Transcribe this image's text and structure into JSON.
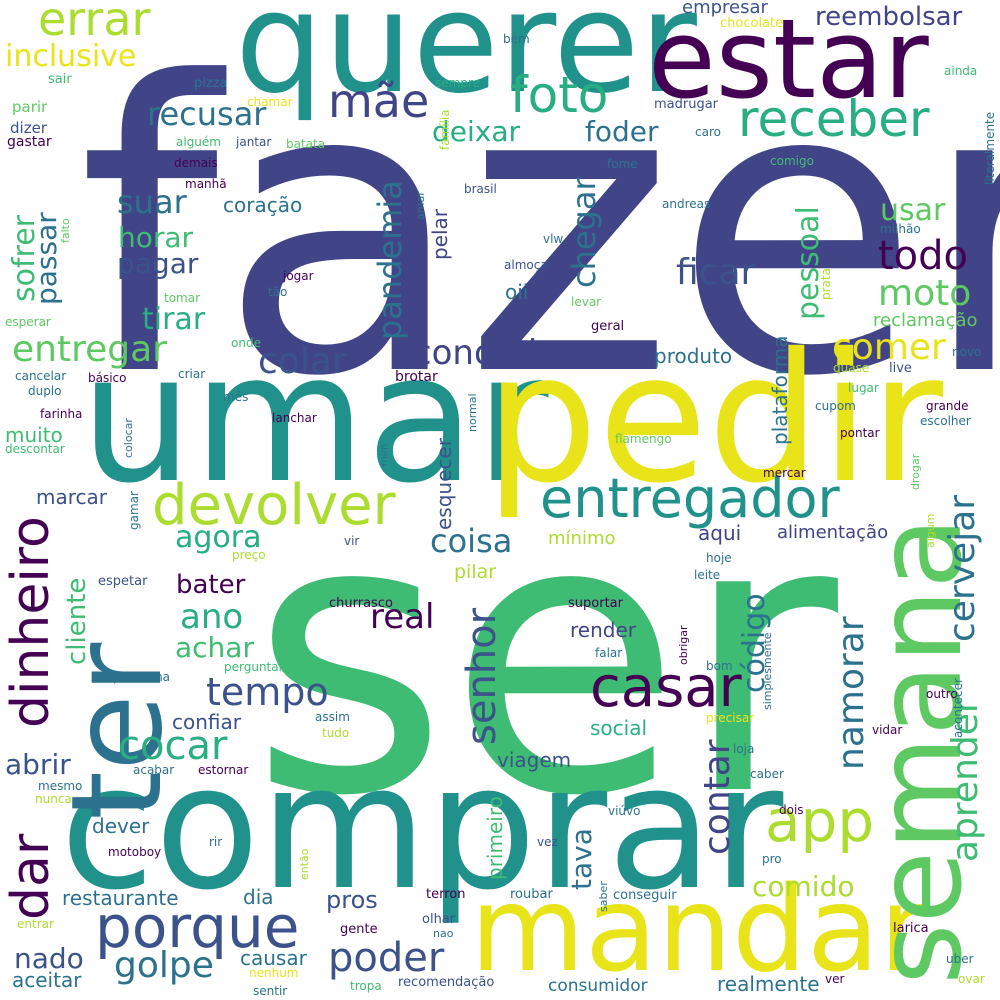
{
  "palette": {
    "purple_dark": "#440154",
    "indigo": "#3b528b",
    "navy": "#414487",
    "blue_teal": "#2c728e",
    "teal": "#21918c",
    "green_teal": "#28ae80",
    "green": "#3fbc73",
    "light_green": "#5ec962",
    "lime": "#addc30",
    "yellow": "#fde725",
    "bright_yellow": "#e8e419"
  },
  "words": [
    {
      "text": "fazer",
      "weight": 100,
      "color": "#414487"
    },
    {
      "text": "ser",
      "weight": 96,
      "color": "#3fbc73"
    },
    {
      "text": "comprar",
      "weight": 60,
      "color": "#21918c"
    },
    {
      "text": "umar",
      "weight": 58,
      "color": "#21918c"
    },
    {
      "text": "pedir",
      "weight": 58,
      "color": "#e8e419"
    },
    {
      "text": "querer",
      "weight": 48,
      "color": "#21918c"
    },
    {
      "text": "mandar",
      "weight": 42,
      "color": "#e8e419"
    },
    {
      "text": "semana",
      "weight": 42,
      "color": "#5ec962"
    },
    {
      "text": "ter",
      "weight": 40,
      "color": "#2c728e"
    },
    {
      "text": "estar",
      "weight": 36,
      "color": "#440154"
    },
    {
      "text": "casar",
      "weight": 24,
      "color": "#440154"
    },
    {
      "text": "porque",
      "weight": 24,
      "color": "#3b528b"
    },
    {
      "text": "app",
      "weight": 24,
      "color": "#addc30"
    },
    {
      "text": "entregador",
      "weight": 22,
      "color": "#21918c"
    },
    {
      "text": "devolver",
      "weight": 22,
      "color": "#addc30"
    },
    {
      "text": "dinheiro",
      "weight": 22,
      "color": "#440154"
    },
    {
      "text": "dar",
      "weight": 22,
      "color": "#440154"
    },
    {
      "text": "errar",
      "weight": 20,
      "color": "#addc30"
    },
    {
      "text": "foto",
      "weight": 20,
      "color": "#28ae80"
    },
    {
      "text": "receber",
      "weight": 20,
      "color": "#28ae80"
    },
    {
      "text": "mãe",
      "weight": 18,
      "color": "#414487"
    },
    {
      "text": "cocar",
      "weight": 16,
      "color": "#28ae80"
    },
    {
      "text": "tempo",
      "weight": 16,
      "color": "#3b528b"
    },
    {
      "text": "golpe",
      "weight": 16,
      "color": "#2c728e"
    },
    {
      "text": "poder",
      "weight": 16,
      "color": "#3b528b"
    },
    {
      "text": "senhor",
      "weight": 16,
      "color": "#3b528b"
    },
    {
      "text": "cervejar",
      "weight": 16,
      "color": "#2c728e"
    },
    {
      "text": "contar",
      "weight": 16,
      "color": "#414487"
    },
    {
      "text": "namorar",
      "weight": 16,
      "color": "#2c728e"
    },
    {
      "text": "aprender",
      "weight": 16,
      "color": "#3fbc73"
    },
    {
      "text": "economizar",
      "weight": 14,
      "color": "#414487"
    },
    {
      "text": "entregar",
      "weight": 14,
      "color": "#5ec962"
    },
    {
      "text": "comer",
      "weight": 14,
      "color": "#e8e419"
    },
    {
      "text": "colar",
      "weight": 14,
      "color": "#3b528b"
    },
    {
      "text": "moto",
      "weight": 14,
      "color": "#5ec962"
    },
    {
      "text": "todo",
      "weight": 14,
      "color": "#440154"
    },
    {
      "text": "ficar",
      "weight": 14,
      "color": "#3b528b"
    },
    {
      "text": "recusar",
      "weight": 14,
      "color": "#2c728e"
    },
    {
      "text": "suar",
      "weight": 14,
      "color": "#2c728e"
    },
    {
      "text": "pandemia",
      "weight": 14,
      "color": "#2c728e"
    },
    {
      "text": "chegar",
      "weight": 14,
      "color": "#2c728e"
    },
    {
      "text": "real",
      "weight": 14,
      "color": "#440154"
    },
    {
      "text": "ano",
      "weight": 14,
      "color": "#28ae80"
    },
    {
      "text": "agora",
      "weight": 14,
      "color": "#28ae80"
    },
    {
      "text": "coisa",
      "weight": 14,
      "color": "#2c728e"
    },
    {
      "text": "código",
      "weight": 14,
      "color": "#2c728e"
    },
    {
      "text": "comido",
      "weight": 12,
      "color": "#addc30"
    },
    {
      "text": "tava",
      "weight": 12,
      "color": "#2c728e"
    },
    {
      "text": "inclusive",
      "weight": 12,
      "color": "#e8e419"
    },
    {
      "text": "deixar",
      "weight": 12,
      "color": "#28ae80"
    },
    {
      "text": "foder",
      "weight": 12,
      "color": "#2c728e"
    },
    {
      "text": "usar",
      "weight": 12,
      "color": "#5ec962"
    },
    {
      "text": "horar",
      "weight": 12,
      "color": "#3fbc73"
    },
    {
      "text": "pagar",
      "weight": 12,
      "color": "#3b528b"
    },
    {
      "text": "tirar",
      "weight": 12,
      "color": "#28ae80"
    },
    {
      "text": "pessoal",
      "weight": 12,
      "color": "#3fbc73"
    },
    {
      "text": "sofrer",
      "weight": 12,
      "color": "#3fbc73"
    },
    {
      "text": "passar",
      "weight": 12,
      "color": "#2c728e"
    },
    {
      "text": "cliente",
      "weight": 12,
      "color": "#3fbc73"
    },
    {
      "text": "achar",
      "weight": 12,
      "color": "#3fbc73"
    },
    {
      "text": "abrir",
      "weight": 12,
      "color": "#3b528b"
    },
    {
      "text": "nado",
      "weight": 12,
      "color": "#3b528b"
    },
    {
      "text": "pros",
      "weight": 12,
      "color": "#3b528b"
    },
    {
      "text": "bater",
      "weight": 12,
      "color": "#440154"
    },
    {
      "text": "reembolsar",
      "weight": 10,
      "color": "#414487"
    },
    {
      "text": "empresar",
      "weight": 9,
      "color": "#3b528b"
    },
    {
      "text": "coração",
      "weight": 9,
      "color": "#2c728e"
    },
    {
      "text": "esquecer",
      "weight": 9,
      "color": "#3b528b"
    },
    {
      "text": "pelar",
      "weight": 9,
      "color": "#414487"
    },
    {
      "text": "oii",
      "weight": 9,
      "color": "#2c728e"
    },
    {
      "text": "produto",
      "weight": 9,
      "color": "#2c728e"
    },
    {
      "text": "plataforma",
      "weight": 9,
      "color": "#2c728e"
    },
    {
      "text": "reclamação",
      "weight": 9,
      "color": "#5ec962"
    },
    {
      "text": "aqui",
      "weight": 9,
      "color": "#414487"
    },
    {
      "text": "alimentação",
      "weight": 9,
      "color": "#414487"
    },
    {
      "text": "viagem",
      "weight": 9,
      "color": "#3b528b"
    },
    {
      "text": "render",
      "weight": 9,
      "color": "#414487"
    },
    {
      "text": "social",
      "weight": 9,
      "color": "#28ae80"
    },
    {
      "text": "confiar",
      "weight": 9,
      "color": "#3b528b"
    },
    {
      "text": "marcar",
      "weight": 9,
      "color": "#3b528b"
    },
    {
      "text": "muito",
      "weight": 9,
      "color": "#3fbc73"
    },
    {
      "text": "dever",
      "weight": 9,
      "color": "#2c728e"
    },
    {
      "text": "restaurante",
      "weight": 9,
      "color": "#2c728e"
    },
    {
      "text": "dia",
      "weight": 9,
      "color": "#2c728e"
    },
    {
      "text": "primeiro",
      "weight": 9,
      "color": "#3fbc73"
    },
    {
      "text": "causar",
      "weight": 9,
      "color": "#2c728e"
    },
    {
      "text": "aceitar",
      "weight": 9,
      "color": "#2c728e"
    },
    {
      "text": "realmente",
      "weight": 9,
      "color": "#2c728e"
    },
    {
      "text": "consumidor",
      "weight": 8,
      "color": "#2c728e"
    },
    {
      "text": "pilar",
      "weight": 8,
      "color": "#addc30"
    },
    {
      "text": "mínimo",
      "weight": 8,
      "color": "#addc30"
    },
    {
      "text": "chocolate",
      "weight": 6,
      "color": "#e8e419"
    },
    {
      "text": "bem",
      "weight": 6,
      "color": "#2c728e"
    },
    {
      "text": "sair",
      "weight": 6,
      "color": "#3fbc73"
    },
    {
      "text": "pizza",
      "weight": 6,
      "color": "#2c728e"
    },
    {
      "text": "sempre",
      "weight": 6,
      "color": "#28ae80"
    },
    {
      "text": "ainda",
      "weight": 6,
      "color": "#3fbc73"
    },
    {
      "text": "literalmente",
      "weight": 6,
      "color": "#2c728e"
    },
    {
      "text": "parir",
      "weight": 6,
      "color": "#5ec962"
    },
    {
      "text": "chamar",
      "weight": 6,
      "color": "#e8e419"
    },
    {
      "text": "família",
      "weight": 6,
      "color": "#addc30"
    },
    {
      "text": "madrugar",
      "weight": 6,
      "color": "#3b528b"
    },
    {
      "text": "dizer",
      "weight": 6,
      "color": "#3b528b"
    },
    {
      "text": "caro",
      "weight": 6,
      "color": "#2c728e"
    },
    {
      "text": "gastar",
      "weight": 6,
      "color": "#440154"
    },
    {
      "text": "alguém",
      "weight": 6,
      "color": "#3fbc73"
    },
    {
      "text": "jantar",
      "weight": 6,
      "color": "#3b528b"
    },
    {
      "text": "batata",
      "weight": 6,
      "color": "#5ec962"
    },
    {
      "text": "demais",
      "weight": 6,
      "color": "#440154"
    },
    {
      "text": "fome",
      "weight": 6,
      "color": "#2c728e"
    },
    {
      "text": "comigo",
      "weight": 6,
      "color": "#3fbc73"
    },
    {
      "text": "manhã",
      "weight": 6,
      "color": "#440154"
    },
    {
      "text": "amar",
      "weight": 6,
      "color": "#2c728e"
    },
    {
      "text": "brasil",
      "weight": 6,
      "color": "#3b528b"
    },
    {
      "text": "andreas",
      "weight": 6,
      "color": "#2c728e"
    },
    {
      "text": "milhão",
      "weight": 6,
      "color": "#2c728e"
    },
    {
      "text": "falto",
      "weight": 6,
      "color": "#5ec962"
    },
    {
      "text": "vlw",
      "weight": 6,
      "color": "#2c728e"
    },
    {
      "text": "jogar",
      "weight": 6,
      "color": "#440154"
    },
    {
      "text": "almoçar",
      "weight": 6,
      "color": "#3b528b"
    },
    {
      "text": "tomar",
      "weight": 6,
      "color": "#5ec962"
    },
    {
      "text": "tão",
      "weight": 6,
      "color": "#2c728e"
    },
    {
      "text": "levar",
      "weight": 6,
      "color": "#5ec962"
    },
    {
      "text": "prata",
      "weight": 6,
      "color": "#addc30"
    },
    {
      "text": "esperar",
      "weight": 6,
      "color": "#5ec962"
    },
    {
      "text": "geral",
      "weight": 6,
      "color": "#440154"
    },
    {
      "text": "onde",
      "weight": 6,
      "color": "#3fbc73"
    },
    {
      "text": "novo",
      "weight": 6,
      "color": "#2c728e"
    },
    {
      "text": "cancelar",
      "weight": 6,
      "color": "#2c728e"
    },
    {
      "text": "básico",
      "weight": 6,
      "color": "#440154"
    },
    {
      "text": "criar",
      "weight": 6,
      "color": "#2c728e"
    },
    {
      "text": "brotar",
      "weight": 6,
      "color": "#440154"
    },
    {
      "text": "quase",
      "weight": 6,
      "color": "#addc30"
    },
    {
      "text": "live",
      "weight": 6,
      "color": "#3b528b"
    },
    {
      "text": "duplo",
      "weight": 6,
      "color": "#2c728e"
    },
    {
      "text": "mês",
      "weight": 6,
      "color": "#2c728e"
    },
    {
      "text": "lugar",
      "weight": 6,
      "color": "#3fbc73"
    },
    {
      "text": "farinha",
      "weight": 6,
      "color": "#440154"
    },
    {
      "text": "colocar",
      "weight": 6,
      "color": "#2c728e"
    },
    {
      "text": "lanchar",
      "weight": 6,
      "color": "#440154"
    },
    {
      "text": "normal",
      "weight": 6,
      "color": "#2c728e"
    },
    {
      "text": "cupom",
      "weight": 6,
      "color": "#2c728e"
    },
    {
      "text": "grande",
      "weight": 6,
      "color": "#440154"
    },
    {
      "text": "escolher",
      "weight": 6,
      "color": "#2c728e"
    },
    {
      "text": "descontar",
      "weight": 6,
      "color": "#3fbc73"
    },
    {
      "text": "pontar",
      "weight": 6,
      "color": "#440154"
    },
    {
      "text": "flamengo",
      "weight": 6,
      "color": "#5ec962"
    },
    {
      "text": "mim",
      "weight": 6,
      "color": "#2c728e"
    },
    {
      "text": "drogar",
      "weight": 6,
      "color": "#5ec962"
    },
    {
      "text": "mercar",
      "weight": 6,
      "color": "#440154"
    },
    {
      "text": "gamar",
      "weight": 6,
      "color": "#2c728e"
    },
    {
      "text": "vir",
      "weight": 6,
      "color": "#3b528b"
    },
    {
      "text": "algum",
      "weight": 6,
      "color": "#addc30"
    },
    {
      "text": "preço",
      "weight": 6,
      "color": "#addc30"
    },
    {
      "text": "hoje",
      "weight": 6,
      "color": "#2c728e"
    },
    {
      "text": "espetar",
      "weight": 6,
      "color": "#3b528b"
    },
    {
      "text": "leite",
      "weight": 6,
      "color": "#2c728e"
    },
    {
      "text": "churrasco",
      "weight": 6,
      "color": "#440154"
    },
    {
      "text": "suportar",
      "weight": 6,
      "color": "#440154"
    },
    {
      "text": "obrigar",
      "weight": 6,
      "color": "#440154"
    },
    {
      "text": "perguntar",
      "weight": 6,
      "color": "#3fbc73"
    },
    {
      "text": "falar",
      "weight": 6,
      "color": "#2c728e"
    },
    {
      "text": "bom",
      "weight": 6,
      "color": "#2c728e"
    },
    {
      "text": "simplesmente",
      "weight": 6,
      "color": "#2c728e"
    },
    {
      "text": "problema",
      "weight": 6,
      "color": "#2c728e"
    },
    {
      "text": "outro",
      "weight": 6,
      "color": "#440154"
    },
    {
      "text": "acontecer",
      "weight": 6,
      "color": "#2c728e"
    },
    {
      "text": "assim",
      "weight": 6,
      "color": "#2c728e"
    },
    {
      "text": "tudo",
      "weight": 6,
      "color": "#addc30"
    },
    {
      "text": "precisar",
      "weight": 6,
      "color": "#e8e419"
    },
    {
      "text": "vidar",
      "weight": 6,
      "color": "#440154"
    },
    {
      "text": "loja",
      "weight": 6,
      "color": "#2c728e"
    },
    {
      "text": "acabar",
      "weight": 6,
      "color": "#2c728e"
    },
    {
      "text": "estornar",
      "weight": 6,
      "color": "#440154"
    },
    {
      "text": "caber",
      "weight": 6,
      "color": "#2c728e"
    },
    {
      "text": "mesmo",
      "weight": 6,
      "color": "#2c728e"
    },
    {
      "text": "nunca",
      "weight": 6,
      "color": "#addc30"
    },
    {
      "text": "viúvo",
      "weight": 6,
      "color": "#2c728e"
    },
    {
      "text": "dois",
      "weight": 6,
      "color": "#440154"
    },
    {
      "text": "rir",
      "weight": 6,
      "color": "#2c728e"
    },
    {
      "text": "vez",
      "weight": 6,
      "color": "#3b528b"
    },
    {
      "text": "pro",
      "weight": 6,
      "color": "#2c728e"
    },
    {
      "text": "motoboy",
      "weight": 6,
      "color": "#440154"
    },
    {
      "text": "então",
      "weight": 6,
      "color": "#addc30"
    },
    {
      "text": "saber",
      "weight": 6,
      "color": "#2c728e"
    },
    {
      "text": "terron",
      "weight": 6,
      "color": "#440154"
    },
    {
      "text": "roubar",
      "weight": 6,
      "color": "#2c728e"
    },
    {
      "text": "conseguir",
      "weight": 6,
      "color": "#2c728e"
    },
    {
      "text": "olhar",
      "weight": 6,
      "color": "#3b528b"
    },
    {
      "text": "nao",
      "weight": 6,
      "color": "#2c728e"
    },
    {
      "text": "entrar",
      "weight": 6,
      "color": "#addc30"
    },
    {
      "text": "gente",
      "weight": 6,
      "color": "#440154"
    },
    {
      "text": "larica",
      "weight": 6,
      "color": "#440154"
    },
    {
      "text": "nenhum",
      "weight": 6,
      "color": "#e8e419"
    },
    {
      "text": "uber",
      "weight": 6,
      "color": "#2c728e"
    },
    {
      "text": "sentir",
      "weight": 6,
      "color": "#2c728e"
    },
    {
      "text": "tropa",
      "weight": 6,
      "color": "#3fbc73"
    },
    {
      "text": "recomendação",
      "weight": 6,
      "color": "#3b528b"
    },
    {
      "text": "ver",
      "weight": 6,
      "color": "#440154"
    },
    {
      "text": "ovar",
      "weight": 6,
      "color": "#addc30"
    }
  ]
}
